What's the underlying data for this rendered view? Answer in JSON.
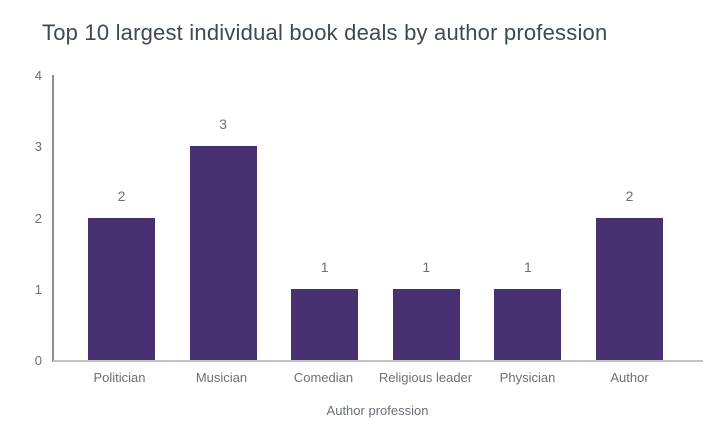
{
  "chart_data": {
    "type": "bar",
    "title": "Top 10 largest individual book deals by author profession",
    "categories": [
      "Politician",
      "Musician",
      "Comedian",
      "Religious leader",
      "Physician",
      "Author"
    ],
    "values": [
      2,
      3,
      1,
      1,
      1,
      2
    ],
    "xlabel": "Author profession",
    "ylabel": "",
    "ylim": [
      0,
      4
    ],
    "yticks": [
      0,
      1,
      2,
      3,
      4
    ],
    "grid": false,
    "legend": "none",
    "data_labels": true
  },
  "colors": {
    "bar": "#483170",
    "title_text": "#3e4956",
    "tick_label_text": "#6b7077",
    "y_axis_line": "#8f9094",
    "x_axis_line": "#c3c3c5",
    "background": "#ffffff"
  }
}
